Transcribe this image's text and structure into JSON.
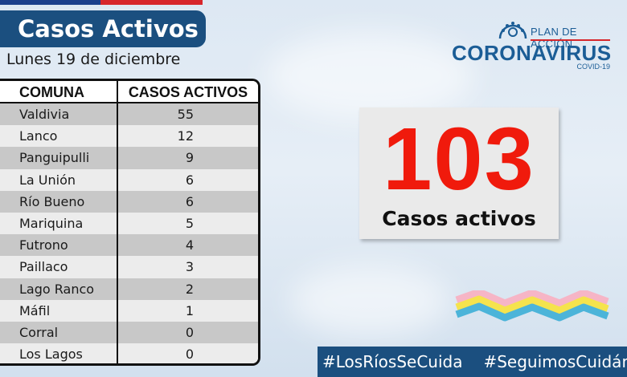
{
  "title": "Casos Activos",
  "date": "Lunes 19 de diciembre",
  "table": {
    "headers": {
      "comuna": "COMUNA",
      "casos": "CASOS ACTIVOS"
    },
    "rows": [
      {
        "comuna": "Valdivia",
        "casos": "55"
      },
      {
        "comuna": "Lanco",
        "casos": "12"
      },
      {
        "comuna": "Panguipulli",
        "casos": "9"
      },
      {
        "comuna": "La Unión",
        "casos": "6"
      },
      {
        "comuna": "Río Bueno",
        "casos": "6"
      },
      {
        "comuna": "Mariquina",
        "casos": "5"
      },
      {
        "comuna": "Futrono",
        "casos": "4"
      },
      {
        "comuna": "Paillaco",
        "casos": "3"
      },
      {
        "comuna": "Lago Ranco",
        "casos": "2"
      },
      {
        "comuna": "Máfil",
        "casos": "1"
      },
      {
        "comuna": "Corral",
        "casos": "0"
      },
      {
        "comuna": "Los Lagos",
        "casos": "0"
      }
    ]
  },
  "logo": {
    "plan": "PLAN DE ACCIÓN",
    "name": "CORONAVIRUS",
    "sub": "COVID-19"
  },
  "total": {
    "number": "103",
    "label": "Casos activos"
  },
  "hashtags": [
    "#LosRíosSeCuida",
    "#SeguimosCuidándonos"
  ],
  "colors": {
    "navy": "#1b4f7f",
    "red_number": "#f01a0c",
    "flag_blue": "#1b3f8b",
    "flag_red": "#d7262b",
    "logo_blue": "#1b5d96"
  }
}
